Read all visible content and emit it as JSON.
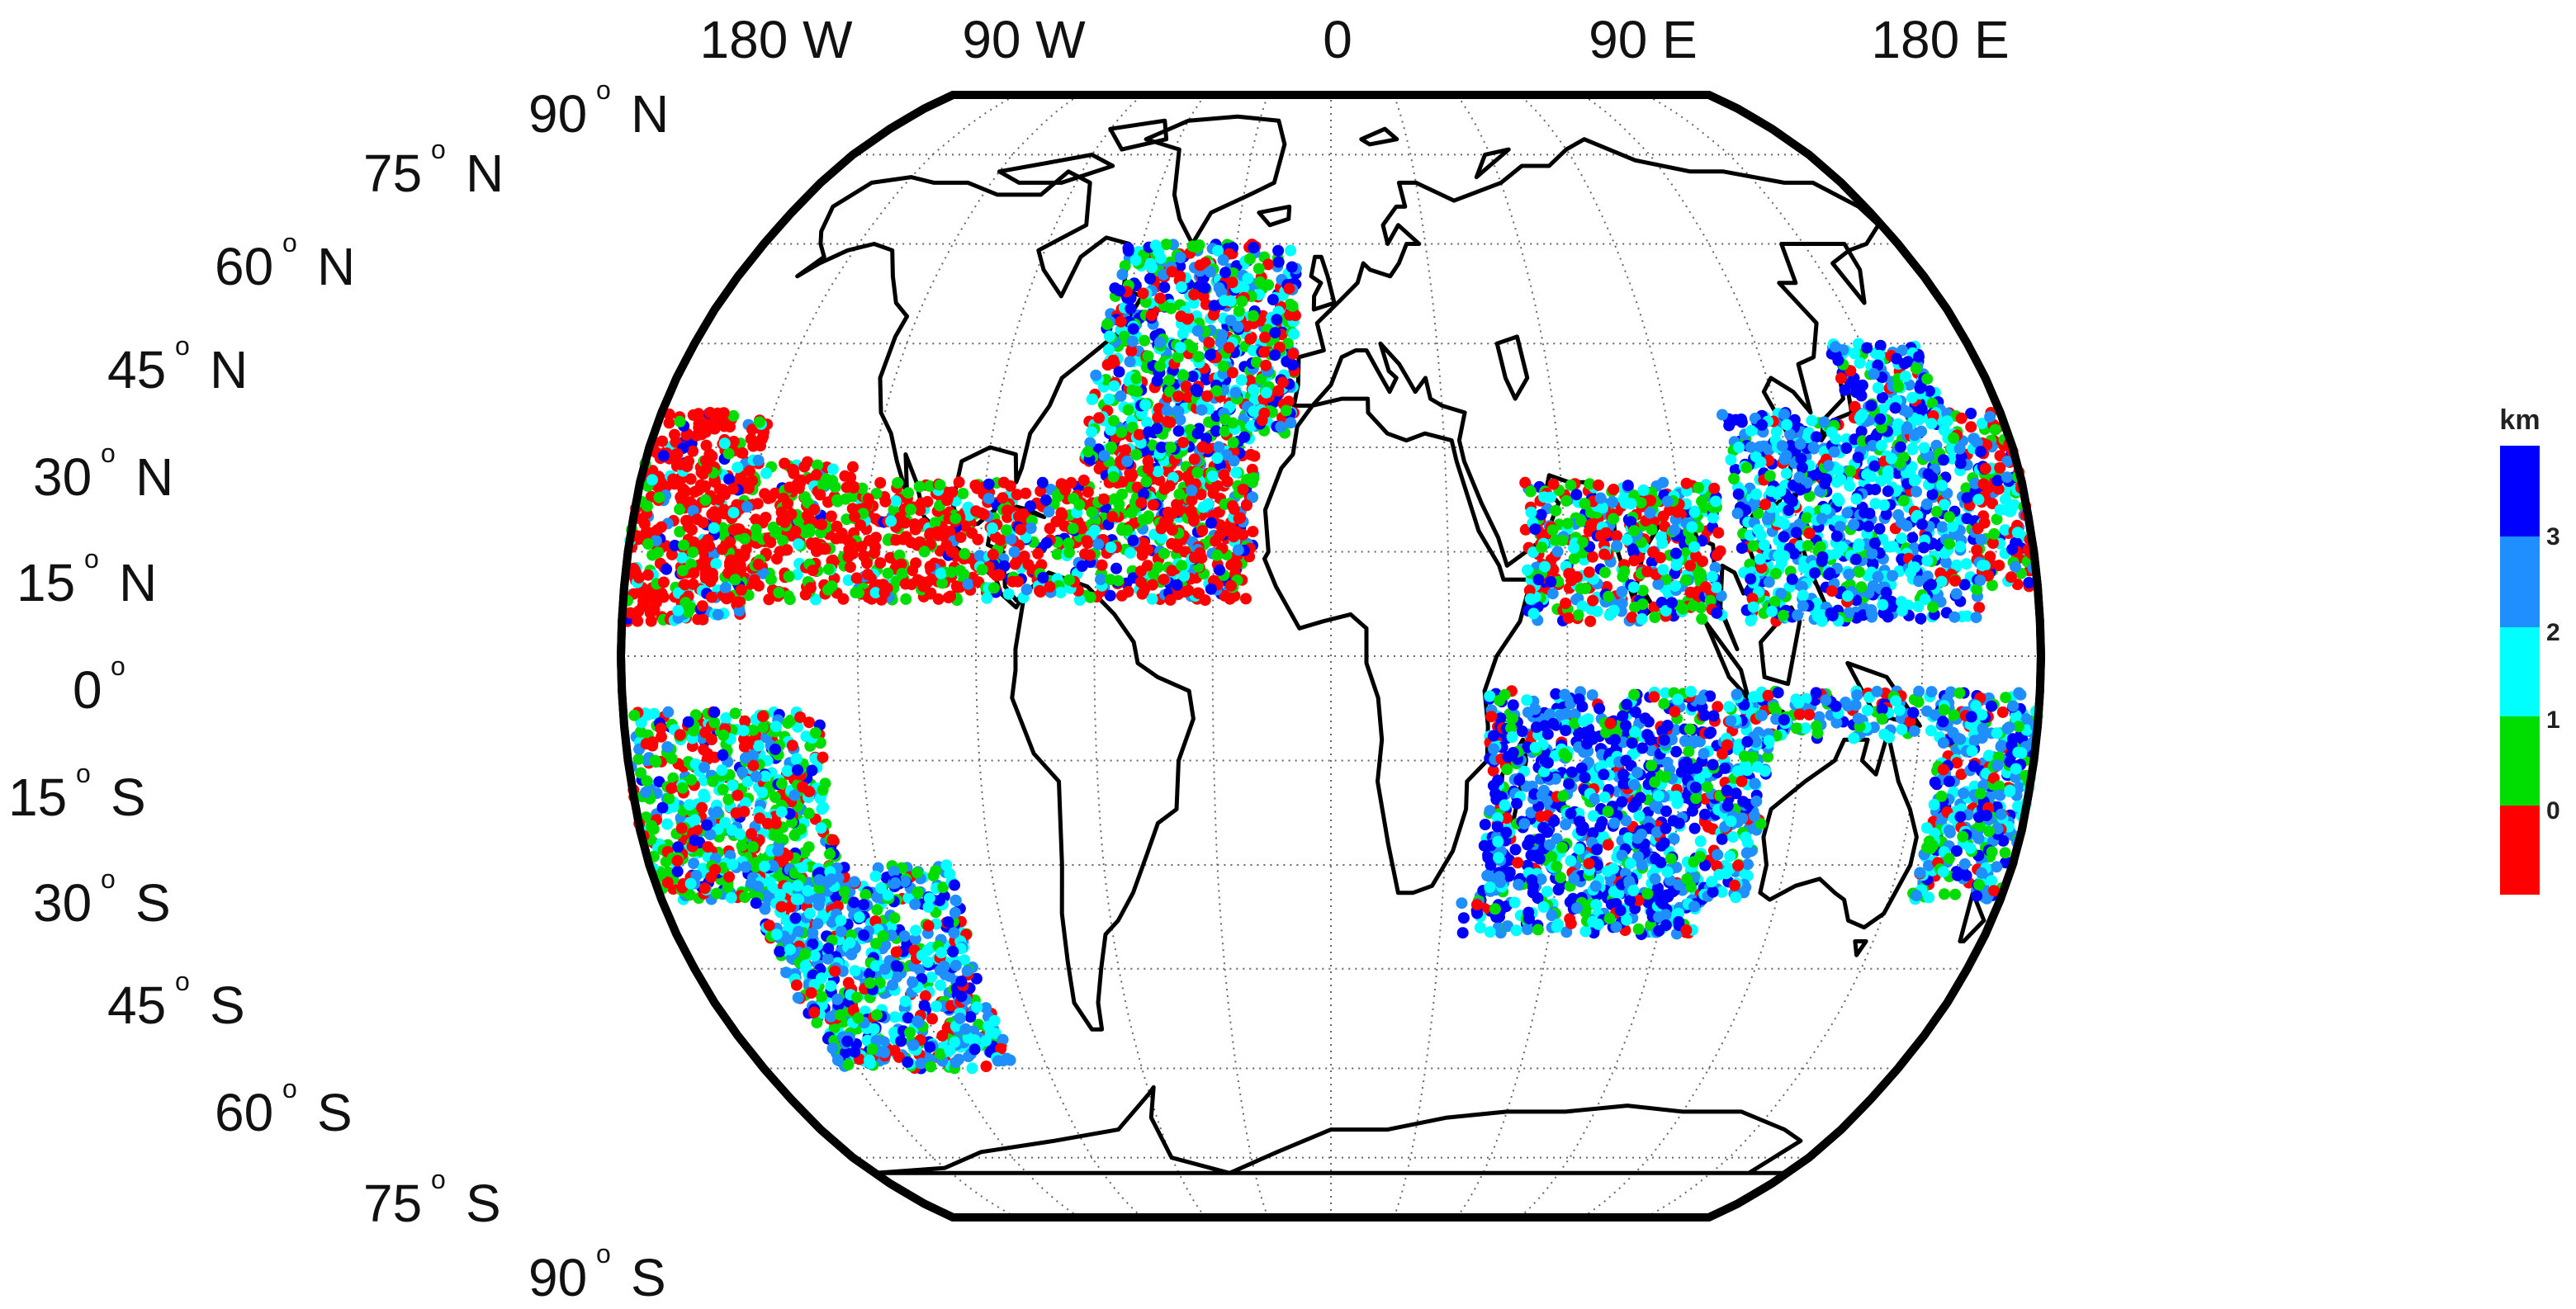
{
  "figure": {
    "projection": "robinson",
    "lon_labels": [
      "180 W",
      "90 W",
      "0",
      "90 E",
      "180 E"
    ],
    "lat_labels": [
      {
        "deg": "90",
        "hemi": "N"
      },
      {
        "deg": "75",
        "hemi": "N"
      },
      {
        "deg": "60",
        "hemi": "N"
      },
      {
        "deg": "45",
        "hemi": "N"
      },
      {
        "deg": "30",
        "hemi": "N"
      },
      {
        "deg": "15",
        "hemi": "N"
      },
      {
        "deg": "0",
        "hemi": ""
      },
      {
        "deg": "15",
        "hemi": "S"
      },
      {
        "deg": "30",
        "hemi": "S"
      },
      {
        "deg": "45",
        "hemi": "S"
      },
      {
        "deg": "60",
        "hemi": "S"
      },
      {
        "deg": "75",
        "hemi": "S"
      },
      {
        "deg": "90",
        "hemi": "S"
      }
    ],
    "degree_symbol": "o",
    "gridlines": true,
    "colorbar": {
      "unit": "km",
      "tick_labels": [
        "3",
        "2",
        "1",
        "0"
      ],
      "colors": [
        "#ff0000",
        "#00dd00",
        "#00ffff",
        "#1f8fff",
        "#0000ff"
      ]
    },
    "point_colors": {
      "0-1 km": "#ff0000",
      "1-2 km": "#00dd00",
      "2-2.5 km": "#00ffff",
      "2.5-3 km": "#1f8fff",
      ">3 km": "#0000ff"
    },
    "point_regions": [
      {
        "lon": [
          -155,
          -90
        ],
        "lat": [
          8,
          28
        ],
        "weights": [
          0.62,
          0.27,
          0.06,
          0.03,
          0.02
        ]
      },
      {
        "lon": [
          -90,
          -20
        ],
        "lat": [
          8,
          30
        ],
        "weights": [
          0.48,
          0.22,
          0.1,
          0.1,
          0.1
        ]
      },
      {
        "lon": [
          -80,
          -10
        ],
        "lat": [
          28,
          60
        ],
        "weights": [
          0.22,
          0.22,
          0.22,
          0.14,
          0.2
        ]
      },
      {
        "lon": [
          -180,
          -150
        ],
        "lat": [
          5,
          35
        ],
        "weights": [
          0.7,
          0.12,
          0.08,
          0.05,
          0.05
        ]
      },
      {
        "lon": [
          -180,
          -130
        ],
        "lat": [
          -35,
          -8
        ],
        "weights": [
          0.22,
          0.33,
          0.25,
          0.12,
          0.08
        ]
      },
      {
        "lon": [
          -155,
          -100
        ],
        "lat": [
          -60,
          -30
        ],
        "weights": [
          0.1,
          0.15,
          0.25,
          0.3,
          0.2
        ]
      },
      {
        "lon": [
          50,
          100
        ],
        "lat": [
          5,
          25
        ],
        "weights": [
          0.28,
          0.22,
          0.2,
          0.15,
          0.15
        ]
      },
      {
        "lon": [
          105,
          165
        ],
        "lat": [
          5,
          45
        ],
        "weights": [
          0.08,
          0.12,
          0.3,
          0.22,
          0.28
        ]
      },
      {
        "lon": [
          165,
          180
        ],
        "lat": [
          10,
          35
        ],
        "weights": [
          0.45,
          0.15,
          0.15,
          0.12,
          0.13
        ]
      },
      {
        "lon": [
          35,
          100
        ],
        "lat": [
          -40,
          -5
        ],
        "weights": [
          0.08,
          0.12,
          0.2,
          0.25,
          0.35
        ]
      },
      {
        "lon": [
          100,
          180
        ],
        "lat": [
          -35,
          -5
        ],
        "weights": [
          0.12,
          0.15,
          0.28,
          0.3,
          0.15
        ]
      }
    ]
  }
}
